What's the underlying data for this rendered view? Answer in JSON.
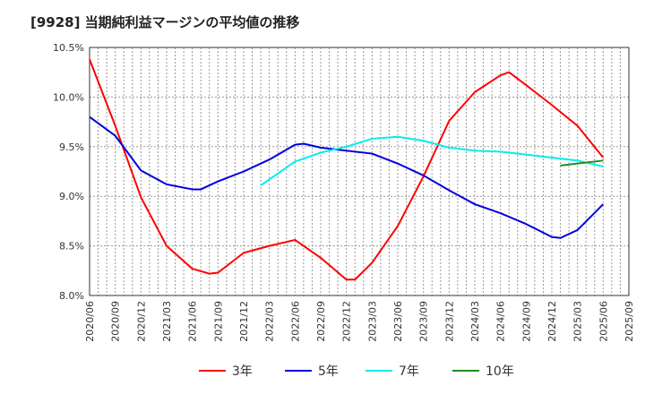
{
  "title": "[9928]  当期純利益マージンの平均値の推移",
  "chart_data": {
    "type": "line",
    "title": "[9928]  当期純利益マージンの平均値の推移",
    "xlabel": "",
    "ylabel": "",
    "x_ticks": [
      "2020/06",
      "2020/09",
      "2020/12",
      "2021/03",
      "2021/06",
      "2021/09",
      "2021/12",
      "2022/03",
      "2022/06",
      "2022/09",
      "2022/12",
      "2023/03",
      "2023/06",
      "2023/09",
      "2023/12",
      "2024/03",
      "2024/06",
      "2024/09",
      "2024/12",
      "2025/03",
      "2025/06",
      "2025/09"
    ],
    "y_ticks": [
      "8.0%",
      "8.5%",
      "9.0%",
      "9.5%",
      "10.0%",
      "10.5%"
    ],
    "ylim": [
      8.0,
      10.5
    ],
    "grid": true,
    "legend_position": "bottom",
    "series": [
      {
        "name": "3年",
        "color": "#ff0000",
        "points": [
          [
            "2020/06",
            10.38
          ],
          [
            "2020/09",
            9.71
          ],
          [
            "2020/12",
            8.99
          ],
          [
            "2021/03",
            8.5
          ],
          [
            "2021/06",
            8.27
          ],
          [
            "2021/08",
            8.22
          ],
          [
            "2021/09",
            8.23
          ],
          [
            "2021/12",
            8.43
          ],
          [
            "2022/03",
            8.5
          ],
          [
            "2022/06",
            8.56
          ],
          [
            "2022/09",
            8.38
          ],
          [
            "2022/12",
            8.16
          ],
          [
            "2023/01",
            8.16
          ],
          [
            "2023/03",
            8.33
          ],
          [
            "2023/06",
            8.7
          ],
          [
            "2023/09",
            9.2
          ],
          [
            "2023/12",
            9.76
          ],
          [
            "2024/03",
            10.05
          ],
          [
            "2024/06",
            10.22
          ],
          [
            "2024/07",
            10.25
          ],
          [
            "2024/09",
            10.12
          ],
          [
            "2024/12",
            9.92
          ],
          [
            "2025/03",
            9.71
          ],
          [
            "2025/06",
            9.39
          ]
        ]
      },
      {
        "name": "5年",
        "color": "#0000dd",
        "points": [
          [
            "2020/06",
            9.8
          ],
          [
            "2020/09",
            9.61
          ],
          [
            "2020/12",
            9.26
          ],
          [
            "2021/03",
            9.12
          ],
          [
            "2021/06",
            9.07
          ],
          [
            "2021/07",
            9.07
          ],
          [
            "2021/09",
            9.15
          ],
          [
            "2021/12",
            9.25
          ],
          [
            "2022/03",
            9.37
          ],
          [
            "2022/06",
            9.52
          ],
          [
            "2022/07",
            9.53
          ],
          [
            "2022/09",
            9.49
          ],
          [
            "2022/12",
            9.46
          ],
          [
            "2023/03",
            9.43
          ],
          [
            "2023/06",
            9.33
          ],
          [
            "2023/09",
            9.21
          ],
          [
            "2023/12",
            9.06
          ],
          [
            "2024/03",
            8.92
          ],
          [
            "2024/06",
            8.83
          ],
          [
            "2024/09",
            8.72
          ],
          [
            "2024/12",
            8.59
          ],
          [
            "2025/01",
            8.58
          ],
          [
            "2025/03",
            8.66
          ],
          [
            "2025/06",
            8.92
          ]
        ]
      },
      {
        "name": "7年",
        "color": "#00eeee",
        "points": [
          [
            "2022/02",
            9.11
          ],
          [
            "2022/06",
            9.35
          ],
          [
            "2022/09",
            9.44
          ],
          [
            "2022/12",
            9.5
          ],
          [
            "2023/03",
            9.58
          ],
          [
            "2023/06",
            9.6
          ],
          [
            "2023/09",
            9.56
          ],
          [
            "2023/12",
            9.49
          ],
          [
            "2024/03",
            9.46
          ],
          [
            "2024/06",
            9.45
          ],
          [
            "2024/09",
            9.42
          ],
          [
            "2024/12",
            9.39
          ],
          [
            "2025/03",
            9.36
          ],
          [
            "2025/06",
            9.3
          ]
        ]
      },
      {
        "name": "10年",
        "color": "#228b22",
        "points": [
          [
            "2025/01",
            9.31
          ],
          [
            "2025/03",
            9.33
          ],
          [
            "2025/06",
            9.36
          ]
        ]
      }
    ]
  }
}
